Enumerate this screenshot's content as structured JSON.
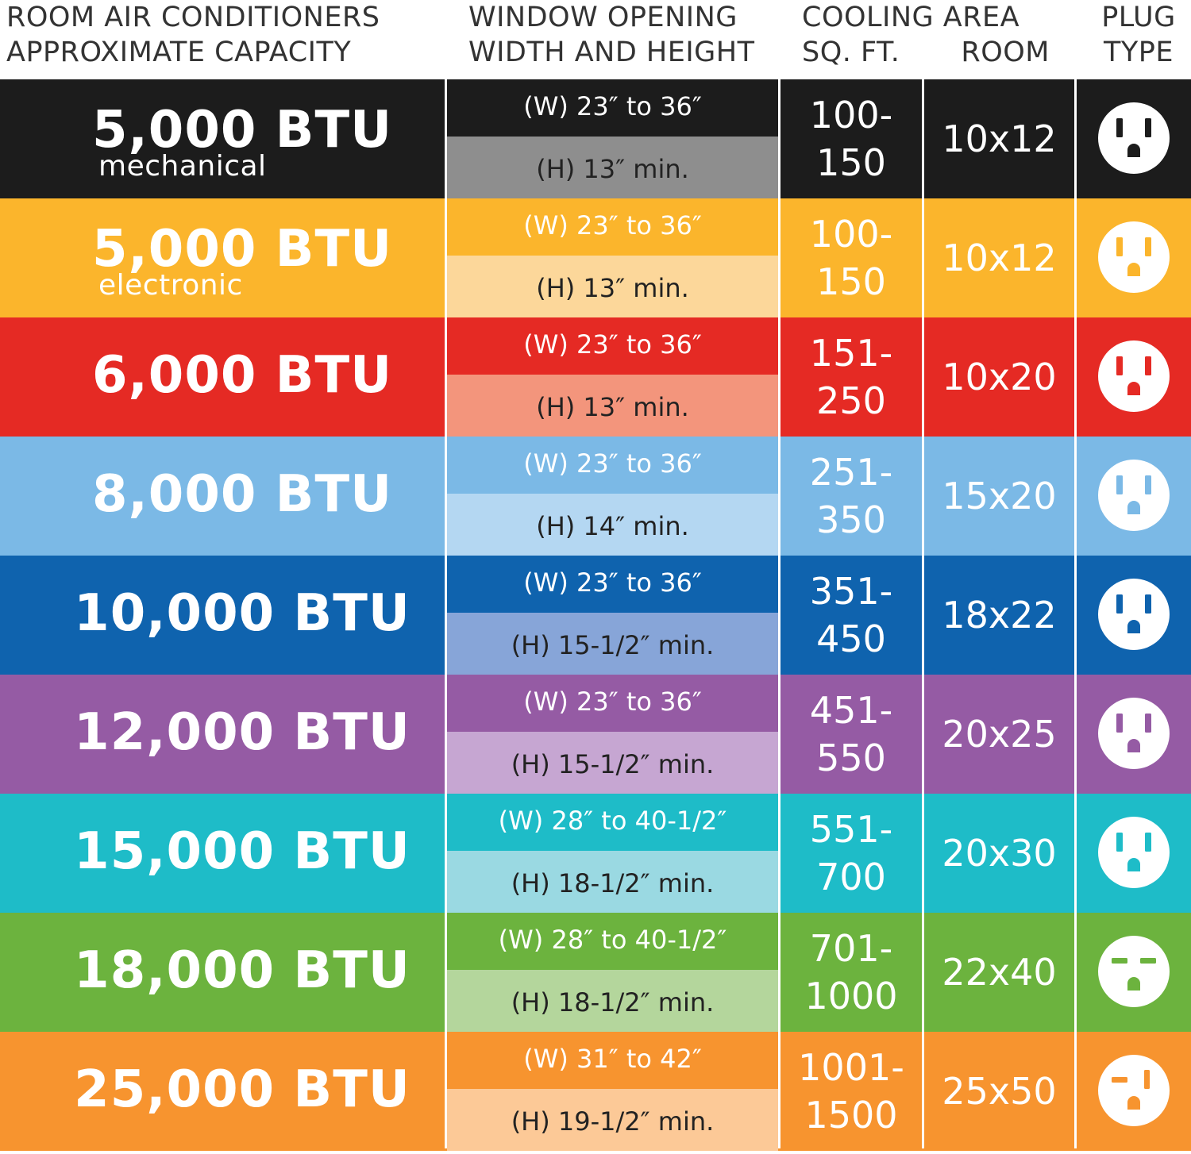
{
  "header": {
    "capacity_line1": "ROOM AIR CONDITIONERS",
    "capacity_line2": "APPROXIMATE CAPACITY",
    "window_line1": "WINDOW OPENING",
    "window_line2": "WIDTH AND HEIGHT",
    "cooling_line1": "COOLING AREA",
    "sqft_label": "SQ. FT.",
    "room_label": "ROOM",
    "plug_line1": "PLUG",
    "plug_line2": "TYPE"
  },
  "rows": [
    {
      "btu": "5,000 BTU",
      "sub": "mechanical",
      "width": "(W) 23″ to 36″",
      "height": "(H) 13″ min.",
      "sqft_top": "100-",
      "sqft_bottom": "150",
      "room": "10x12",
      "plug_icon": "standard-outlet-icon",
      "color": "#1c1c1c",
      "light": "#8e8e8e"
    },
    {
      "btu": "5,000 BTU",
      "sub": "electronic",
      "width": "(W) 23″ to 36″",
      "height": "(H) 13″ min.",
      "sqft_top": "100-",
      "sqft_bottom": "150",
      "room": "10x12",
      "plug_icon": "standard-outlet-icon",
      "color": "#fbb52c",
      "light": "#fcd79a"
    },
    {
      "btu": "6,000 BTU",
      "sub": "",
      "width": "(W) 23″ to 36″",
      "height": "(H) 13″ min.",
      "sqft_top": "151-",
      "sqft_bottom": "250",
      "room": "10x20",
      "plug_icon": "standard-outlet-icon",
      "color": "#e52a24",
      "light": "#f3957c"
    },
    {
      "btu": "8,000 BTU",
      "sub": "",
      "width": "(W) 23″ to 36″",
      "height": "(H) 14″ min.",
      "sqft_top": "251-",
      "sqft_bottom": "350",
      "room": "15x20",
      "plug_icon": "standard-outlet-icon",
      "color": "#7bb9e6",
      "light": "#b4d7f2"
    },
    {
      "btu": "10,000 BTU",
      "sub": "",
      "width": "(W) 23″ to 36″",
      "height": "(H) 15-1/2″ min.",
      "sqft_top": "351-",
      "sqft_bottom": "450",
      "room": "18x22",
      "plug_icon": "standard-outlet-icon",
      "color": "#0f63ae",
      "light": "#87a5d8"
    },
    {
      "btu": "12,000 BTU",
      "sub": "",
      "width": "(W) 23″ to 36″",
      "height": "(H) 15-1/2″ min.",
      "sqft_top": "451-",
      "sqft_bottom": "550",
      "room": "20x25",
      "plug_icon": "standard-outlet-icon",
      "color": "#955ba4",
      "light": "#c6a6d2"
    },
    {
      "btu": "15,000 BTU",
      "sub": "",
      "width": "(W) 28″ to 40-1/2″",
      "height": "(H) 18-1/2″ min.",
      "sqft_top": "551-",
      "sqft_bottom": "700",
      "room": "20x30",
      "plug_icon": "standard-outlet-icon",
      "color": "#1ebcc8",
      "light": "#9ad9e2"
    },
    {
      "btu": "18,000 BTU",
      "sub": "",
      "width": "(W) 28″ to 40-1/2″",
      "height": "(H) 18-1/2″ min.",
      "sqft_top": "701-",
      "sqft_bottom": "1000",
      "room": "22x40",
      "plug_icon": "horizontal-blade-outlet-icon",
      "color": "#6cb33e",
      "light": "#b4d69c"
    },
    {
      "btu": "25,000 BTU",
      "sub": "",
      "width": "(W) 31″ to 42″",
      "height": "(H) 19-1/2″ min.",
      "sqft_top": "1001-",
      "sqft_bottom": "1500",
      "room": "25x50",
      "plug_icon": "mixed-blade-outlet-icon",
      "color": "#f7942f",
      "light": "#fcc997"
    }
  ]
}
